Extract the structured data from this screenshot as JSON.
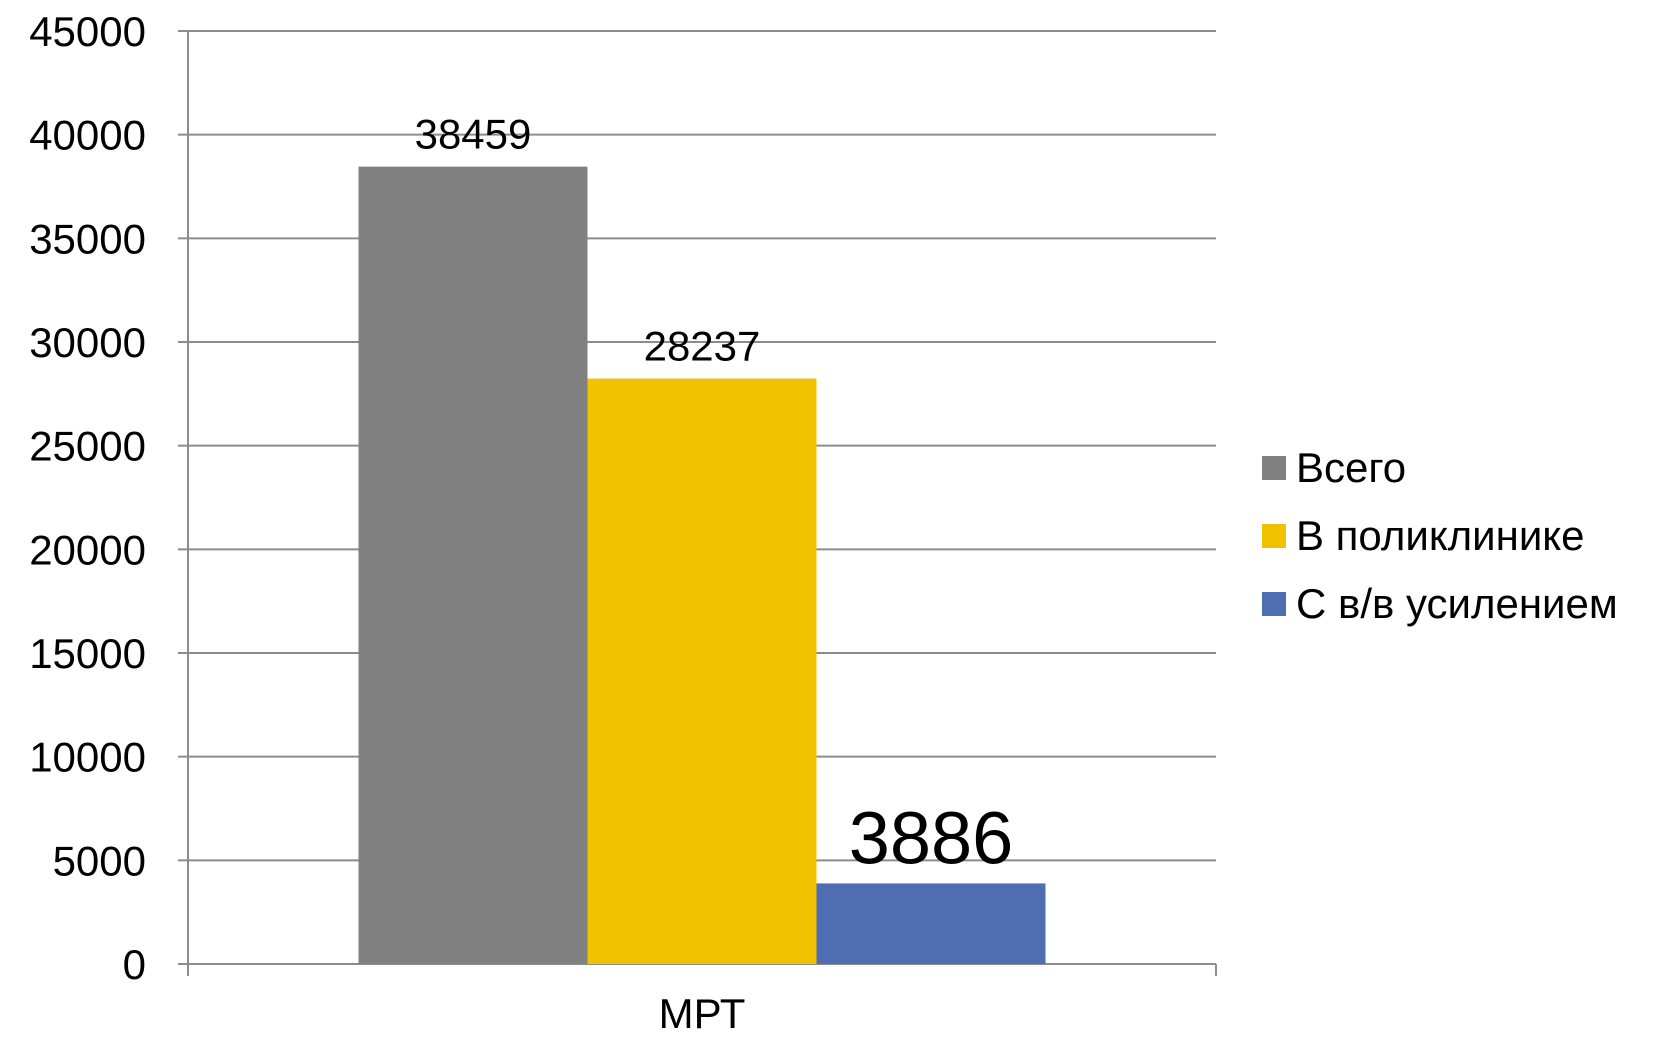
{
  "chart_data": {
    "type": "bar",
    "categories": [
      "МРТ"
    ],
    "series": [
      {
        "name": "Всего",
        "values": [
          38459
        ],
        "color": "#808080",
        "data_label": "38459"
      },
      {
        "name": "В поликлинике",
        "values": [
          28237
        ],
        "color": "#F2C200",
        "data_label": "28237"
      },
      {
        "name": "С в/в усилением",
        "values": [
          3886
        ],
        "color": "#4F6DB1",
        "data_label": "3886"
      }
    ],
    "ylim": [
      0,
      45000
    ],
    "yticks": [
      0,
      5000,
      10000,
      15000,
      20000,
      25000,
      30000,
      35000,
      40000,
      45000
    ],
    "ytick_labels": [
      "0",
      "5000",
      "10000",
      "15000",
      "20000",
      "25000",
      "30000",
      "35000",
      "40000",
      "45000"
    ],
    "title": "",
    "xlabel": "",
    "ylabel": "",
    "grid": true,
    "legend_position": "right"
  }
}
